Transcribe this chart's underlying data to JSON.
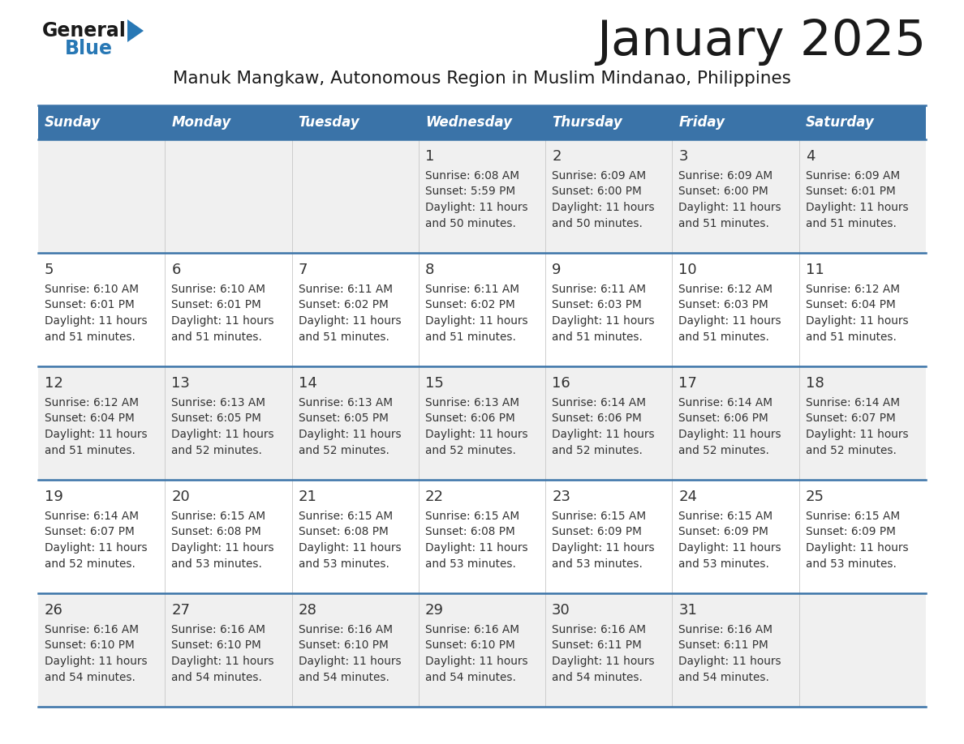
{
  "title": "January 2025",
  "subtitle": "Manuk Mangkaw, Autonomous Region in Muslim Mindanao, Philippines",
  "days_of_week": [
    "Sunday",
    "Monday",
    "Tuesday",
    "Wednesday",
    "Thursday",
    "Friday",
    "Saturday"
  ],
  "header_bg": "#3a73a8",
  "header_text_color": "#ffffff",
  "row_bg_odd": "#f0f0f0",
  "row_bg_even": "#ffffff",
  "day_num_color": "#333333",
  "cell_text_color": "#333333",
  "grid_line_color": "#3a73a8",
  "logo_general_color": "#1a1a1a",
  "logo_blue_color": "#2878b5",
  "logo_triangle_color": "#2878b5",
  "calendar_data": [
    [
      null,
      null,
      null,
      {
        "day": 1,
        "sunrise": "6:08 AM",
        "sunset": "5:59 PM",
        "dl1": "Daylight: 11 hours",
        "dl2": "and 50 minutes."
      },
      {
        "day": 2,
        "sunrise": "6:09 AM",
        "sunset": "6:00 PM",
        "dl1": "Daylight: 11 hours",
        "dl2": "and 50 minutes."
      },
      {
        "day": 3,
        "sunrise": "6:09 AM",
        "sunset": "6:00 PM",
        "dl1": "Daylight: 11 hours",
        "dl2": "and 51 minutes."
      },
      {
        "day": 4,
        "sunrise": "6:09 AM",
        "sunset": "6:01 PM",
        "dl1": "Daylight: 11 hours",
        "dl2": "and 51 minutes."
      }
    ],
    [
      {
        "day": 5,
        "sunrise": "6:10 AM",
        "sunset": "6:01 PM",
        "dl1": "Daylight: 11 hours",
        "dl2": "and 51 minutes."
      },
      {
        "day": 6,
        "sunrise": "6:10 AM",
        "sunset": "6:01 PM",
        "dl1": "Daylight: 11 hours",
        "dl2": "and 51 minutes."
      },
      {
        "day": 7,
        "sunrise": "6:11 AM",
        "sunset": "6:02 PM",
        "dl1": "Daylight: 11 hours",
        "dl2": "and 51 minutes."
      },
      {
        "day": 8,
        "sunrise": "6:11 AM",
        "sunset": "6:02 PM",
        "dl1": "Daylight: 11 hours",
        "dl2": "and 51 minutes."
      },
      {
        "day": 9,
        "sunrise": "6:11 AM",
        "sunset": "6:03 PM",
        "dl1": "Daylight: 11 hours",
        "dl2": "and 51 minutes."
      },
      {
        "day": 10,
        "sunrise": "6:12 AM",
        "sunset": "6:03 PM",
        "dl1": "Daylight: 11 hours",
        "dl2": "and 51 minutes."
      },
      {
        "day": 11,
        "sunrise": "6:12 AM",
        "sunset": "6:04 PM",
        "dl1": "Daylight: 11 hours",
        "dl2": "and 51 minutes."
      }
    ],
    [
      {
        "day": 12,
        "sunrise": "6:12 AM",
        "sunset": "6:04 PM",
        "dl1": "Daylight: 11 hours",
        "dl2": "and 51 minutes."
      },
      {
        "day": 13,
        "sunrise": "6:13 AM",
        "sunset": "6:05 PM",
        "dl1": "Daylight: 11 hours",
        "dl2": "and 52 minutes."
      },
      {
        "day": 14,
        "sunrise": "6:13 AM",
        "sunset": "6:05 PM",
        "dl1": "Daylight: 11 hours",
        "dl2": "and 52 minutes."
      },
      {
        "day": 15,
        "sunrise": "6:13 AM",
        "sunset": "6:06 PM",
        "dl1": "Daylight: 11 hours",
        "dl2": "and 52 minutes."
      },
      {
        "day": 16,
        "sunrise": "6:14 AM",
        "sunset": "6:06 PM",
        "dl1": "Daylight: 11 hours",
        "dl2": "and 52 minutes."
      },
      {
        "day": 17,
        "sunrise": "6:14 AM",
        "sunset": "6:06 PM",
        "dl1": "Daylight: 11 hours",
        "dl2": "and 52 minutes."
      },
      {
        "day": 18,
        "sunrise": "6:14 AM",
        "sunset": "6:07 PM",
        "dl1": "Daylight: 11 hours",
        "dl2": "and 52 minutes."
      }
    ],
    [
      {
        "day": 19,
        "sunrise": "6:14 AM",
        "sunset": "6:07 PM",
        "dl1": "Daylight: 11 hours",
        "dl2": "and 52 minutes."
      },
      {
        "day": 20,
        "sunrise": "6:15 AM",
        "sunset": "6:08 PM",
        "dl1": "Daylight: 11 hours",
        "dl2": "and 53 minutes."
      },
      {
        "day": 21,
        "sunrise": "6:15 AM",
        "sunset": "6:08 PM",
        "dl1": "Daylight: 11 hours",
        "dl2": "and 53 minutes."
      },
      {
        "day": 22,
        "sunrise": "6:15 AM",
        "sunset": "6:08 PM",
        "dl1": "Daylight: 11 hours",
        "dl2": "and 53 minutes."
      },
      {
        "day": 23,
        "sunrise": "6:15 AM",
        "sunset": "6:09 PM",
        "dl1": "Daylight: 11 hours",
        "dl2": "and 53 minutes."
      },
      {
        "day": 24,
        "sunrise": "6:15 AM",
        "sunset": "6:09 PM",
        "dl1": "Daylight: 11 hours",
        "dl2": "and 53 minutes."
      },
      {
        "day": 25,
        "sunrise": "6:15 AM",
        "sunset": "6:09 PM",
        "dl1": "Daylight: 11 hours",
        "dl2": "and 53 minutes."
      }
    ],
    [
      {
        "day": 26,
        "sunrise": "6:16 AM",
        "sunset": "6:10 PM",
        "dl1": "Daylight: 11 hours",
        "dl2": "and 54 minutes."
      },
      {
        "day": 27,
        "sunrise": "6:16 AM",
        "sunset": "6:10 PM",
        "dl1": "Daylight: 11 hours",
        "dl2": "and 54 minutes."
      },
      {
        "day": 28,
        "sunrise": "6:16 AM",
        "sunset": "6:10 PM",
        "dl1": "Daylight: 11 hours",
        "dl2": "and 54 minutes."
      },
      {
        "day": 29,
        "sunrise": "6:16 AM",
        "sunset": "6:10 PM",
        "dl1": "Daylight: 11 hours",
        "dl2": "and 54 minutes."
      },
      {
        "day": 30,
        "sunrise": "6:16 AM",
        "sunset": "6:11 PM",
        "dl1": "Daylight: 11 hours",
        "dl2": "and 54 minutes."
      },
      {
        "day": 31,
        "sunrise": "6:16 AM",
        "sunset": "6:11 PM",
        "dl1": "Daylight: 11 hours",
        "dl2": "and 54 minutes."
      },
      null
    ]
  ]
}
